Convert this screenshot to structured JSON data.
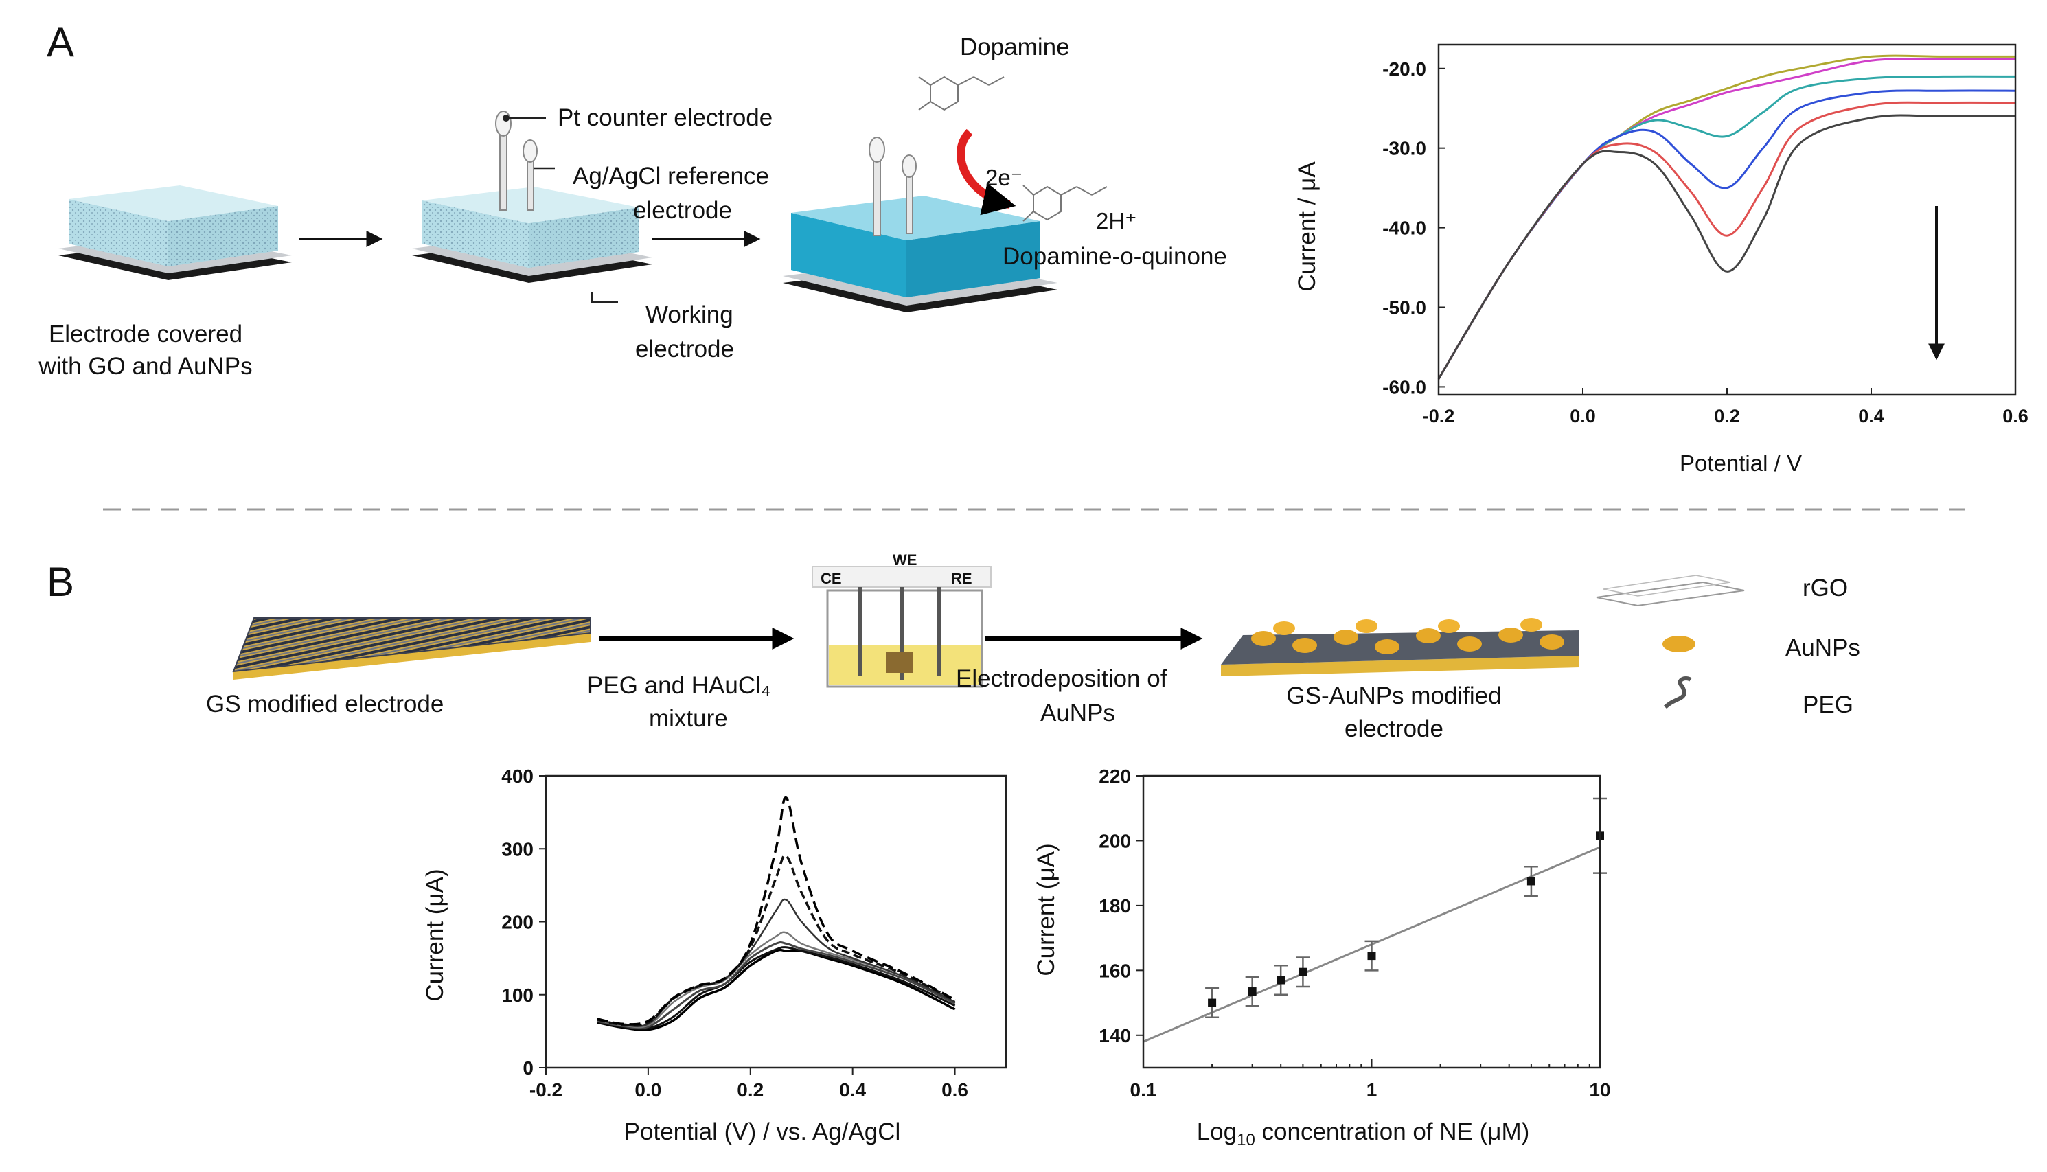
{
  "panel_a": {
    "label": "A",
    "step1_caption": [
      "Electrode covered",
      "with GO and AuNPs"
    ],
    "counter_label": "Pt counter electrode",
    "reference_label": [
      "Ag/AgCl reference",
      "electrode"
    ],
    "working_label": [
      "Working",
      "electrode"
    ],
    "reaction": {
      "reactant": "Dopamine",
      "electrons": "2e⁻",
      "protons": "2H⁺",
      "product": "Dopamine-o-quinone"
    }
  },
  "panel_b": {
    "label": "B",
    "step1_caption": "GS modified  electrode",
    "step2_caption": [
      "PEG and HAuCl₄",
      "mixture"
    ],
    "cell_labels": {
      "we": "WE",
      "ce": "CE",
      "re": "RE"
    },
    "step3_caption": [
      "Electrodeposition of",
      "AuNPs"
    ],
    "step4_caption": [
      "GS-AuNPs modified",
      "electrode"
    ],
    "legend": [
      "rGO",
      "AuNPs",
      "PEG"
    ]
  },
  "chart_data": [
    {
      "id": "panel-a-dpv",
      "type": "line",
      "title": "",
      "xlabel": "Potential / V",
      "ylabel": "Current / μA",
      "xlim": [
        -0.2,
        0.6
      ],
      "ylim": [
        -61,
        -17
      ],
      "x_ticks": [
        -0.2,
        0.0,
        0.2,
        0.4,
        0.6
      ],
      "x_tick_labels": [
        "-0.2",
        "0.0",
        "0.2",
        "0.4",
        "0.6"
      ],
      "y_ticks": [
        -20,
        -30,
        -40,
        -50,
        -60
      ],
      "y_tick_labels": [
        "-20.0",
        "-30.0",
        "-40.0",
        "-50.0",
        "-60.0"
      ],
      "annotation": "downward arrow indicating increasing concentration",
      "x": [
        -0.2,
        -0.1,
        0.0,
        0.05,
        0.1,
        0.15,
        0.2,
        0.25,
        0.3,
        0.4,
        0.5,
        0.6
      ],
      "series": [
        {
          "name": "c0",
          "color": "#b0a830",
          "values": [
            -59,
            -44,
            -32,
            -28.5,
            -25.5,
            -24,
            -22.5,
            -21,
            -20,
            -18.5,
            -18.5,
            -18.5
          ]
        },
        {
          "name": "c1",
          "color": "#d040c8",
          "values": [
            -59,
            -44,
            -32,
            -28.5,
            -26,
            -24.5,
            -23,
            -22,
            -21,
            -19,
            -18.8,
            -18.8
          ]
        },
        {
          "name": "c2",
          "color": "#30a8a8",
          "values": [
            -59,
            -44,
            -32,
            -28.5,
            -26.5,
            -27.5,
            -28.5,
            -25.5,
            -22.5,
            -21.2,
            -21,
            -21
          ]
        },
        {
          "name": "c3",
          "color": "#3050d8",
          "values": [
            -59,
            -44,
            -32,
            -28.5,
            -28,
            -32,
            -35,
            -30,
            -25,
            -23,
            -22.8,
            -22.8
          ]
        },
        {
          "name": "c4",
          "color": "#e05050",
          "values": [
            -59,
            -44,
            -32,
            -29.5,
            -30.5,
            -35.5,
            -41,
            -35,
            -27.5,
            -24.6,
            -24.3,
            -24.3
          ]
        },
        {
          "name": "c5",
          "color": "#444444",
          "values": [
            -59,
            -44,
            -32,
            -30.5,
            -32,
            -38.5,
            -45.5,
            -39,
            -29.5,
            -26.2,
            -26,
            -26
          ]
        }
      ]
    },
    {
      "id": "panel-b-dpv",
      "type": "line",
      "title": "",
      "xlabel": "Potential (V) / vs. Ag/AgCl",
      "ylabel": "Current (μA)",
      "xlim": [
        -0.2,
        0.7
      ],
      "ylim": [
        0,
        400
      ],
      "x_ticks": [
        -0.2,
        0.0,
        0.2,
        0.4,
        0.6
      ],
      "x_tick_labels": [
        "-0.2",
        "0.0",
        "0.2",
        "0.4",
        "0.6"
      ],
      "y_ticks": [
        0,
        100,
        200,
        300,
        400
      ],
      "y_tick_labels": [
        "0",
        "100",
        "200",
        "300",
        "400"
      ],
      "x": [
        -0.1,
        -0.05,
        0.0,
        0.05,
        0.1,
        0.15,
        0.2,
        0.25,
        0.27,
        0.3,
        0.35,
        0.4,
        0.5,
        0.6
      ],
      "series": [
        {
          "name": "s1",
          "values": [
            62,
            55,
            52,
            65,
            95,
            110,
            140,
            160,
            160,
            160,
            150,
            140,
            115,
            80
          ]
        },
        {
          "name": "s2",
          "values": [
            63,
            56,
            54,
            70,
            100,
            115,
            145,
            162,
            165,
            160,
            152,
            142,
            118,
            85
          ]
        },
        {
          "name": "s3",
          "values": [
            64,
            57,
            56,
            80,
            105,
            115,
            150,
            170,
            170,
            163,
            155,
            145,
            122,
            88
          ]
        },
        {
          "name": "s4",
          "values": [
            65,
            58,
            58,
            90,
            110,
            120,
            155,
            180,
            185,
            170,
            158,
            148,
            125,
            90
          ]
        },
        {
          "name": "s5",
          "values": [
            66,
            59,
            60,
            95,
            112,
            122,
            160,
            215,
            230,
            200,
            165,
            150,
            125,
            90
          ]
        },
        {
          "name": "s6",
          "values": [
            66,
            59,
            62,
            95,
            112,
            122,
            165,
            260,
            290,
            240,
            175,
            155,
            128,
            92
          ]
        },
        {
          "name": "s7",
          "values": [
            67,
            60,
            64,
            96,
            113,
            123,
            170,
            300,
            370,
            280,
            185,
            160,
            130,
            93
          ]
        }
      ]
    },
    {
      "id": "panel-b-calibration",
      "type": "scatter",
      "title": "",
      "xlabel": "Log10 concentration of NE (μM)",
      "xlabel_prefix": "Log",
      "xlabel_sub": "10",
      "xlabel_suffix": " concentration of NE (μM)",
      "ylabel": "Current (μA)",
      "x_scale": "log",
      "xlim": [
        0.1,
        10
      ],
      "ylim": [
        130,
        220
      ],
      "x_ticks": [
        0.1,
        1,
        10
      ],
      "x_tick_labels": [
        "0.1",
        "1",
        "10"
      ],
      "y_ticks": [
        140,
        160,
        180,
        200,
        220
      ],
      "y_tick_labels": [
        "140",
        "160",
        "180",
        "200",
        "220"
      ],
      "points": [
        {
          "x": 0.2,
          "y": 150,
          "err": 4.5
        },
        {
          "x": 0.3,
          "y": 153.5,
          "err": 4.5
        },
        {
          "x": 0.4,
          "y": 157,
          "err": 4.5
        },
        {
          "x": 0.5,
          "y": 159.5,
          "err": 4.5
        },
        {
          "x": 1,
          "y": 164.5,
          "err": 4.5
        },
        {
          "x": 5,
          "y": 187.5,
          "err": 4.5
        },
        {
          "x": 10,
          "y": 201.5,
          "err": 11.5
        }
      ],
      "fit_line": {
        "x": [
          0.1,
          10
        ],
        "y": [
          138,
          198
        ]
      }
    }
  ]
}
